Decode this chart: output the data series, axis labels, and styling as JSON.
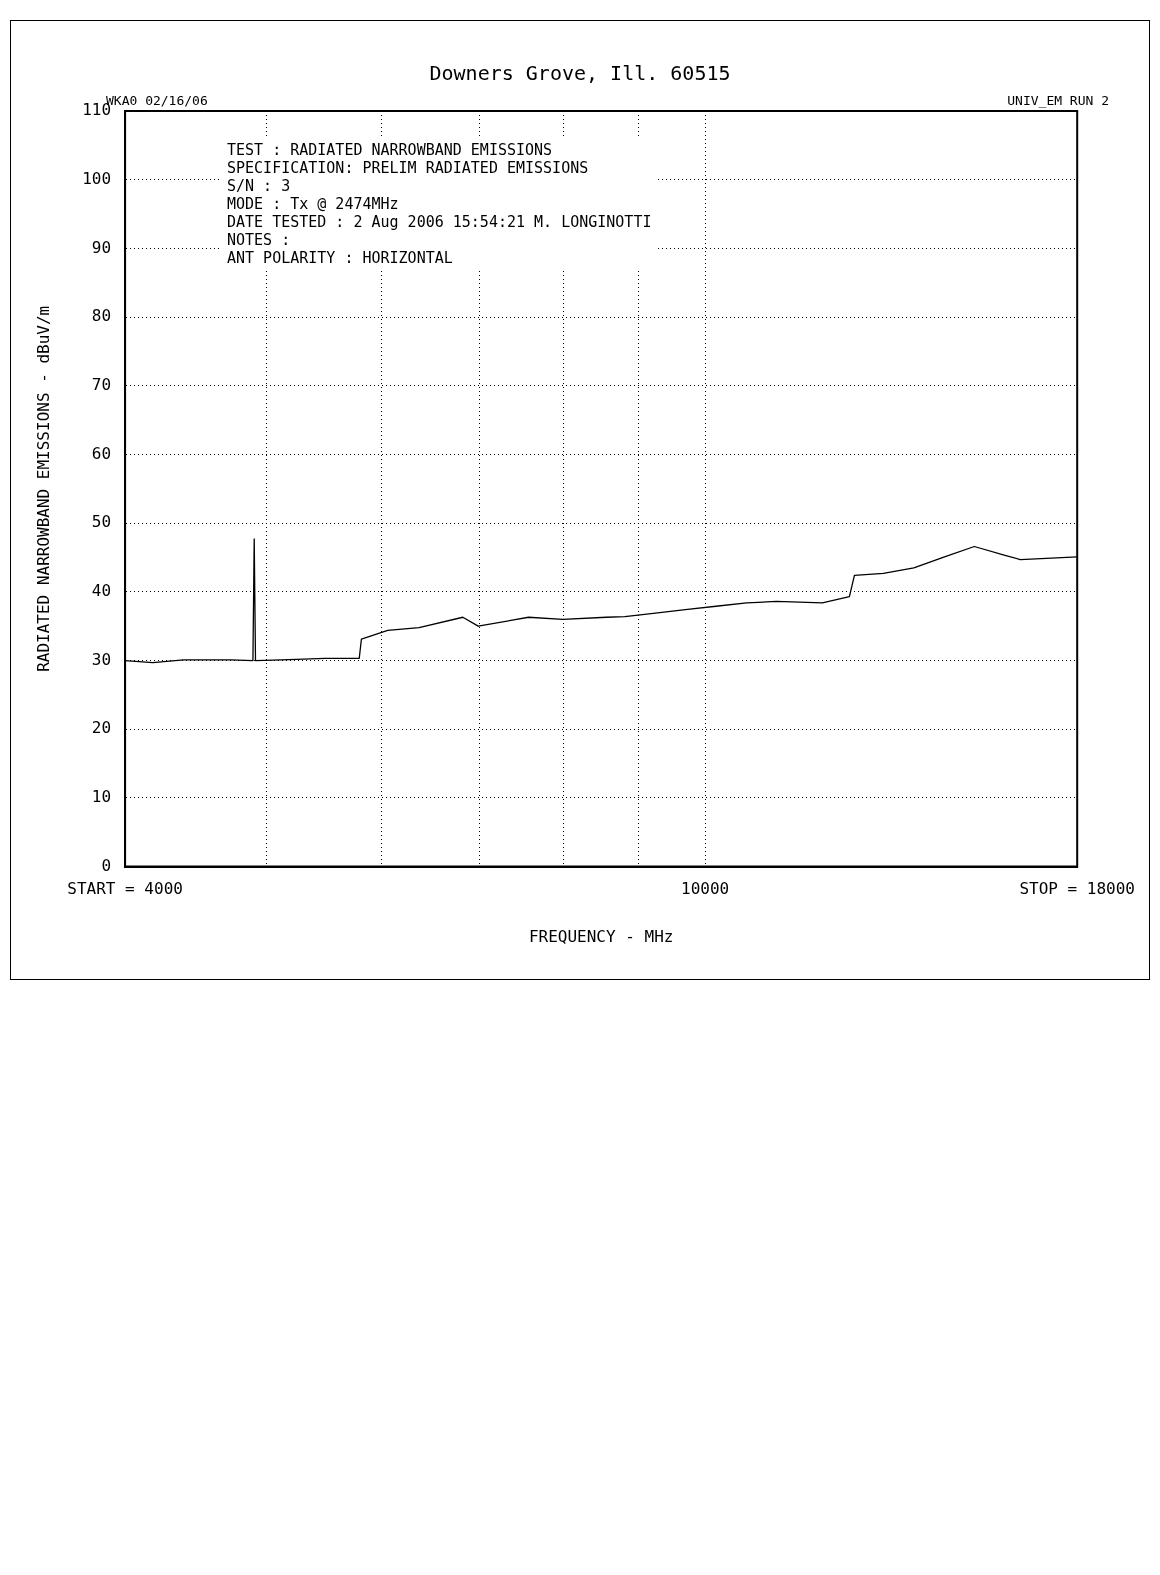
{
  "chart_data": {
    "type": "line",
    "subtitle": "Downers Grove, Ill. 60515",
    "xlabel": "FREQUENCY - MHz",
    "ylabel": "RADIATED NARROWBAND EMISSIONS - dBuV/m",
    "annotations": [
      "WKA0 02/16/06",
      "UNIV_EM RUN 2",
      "TEST : RADIATED NARROWBAND EMISSIONS",
      "SPECIFICATION: PRELIM RADIATED EMISSIONS",
      "S/N : 3",
      "MODE : Tx @ 2474MHz",
      "DATE TESTED : 2 Aug 2006 15:54:21 M. LONGINOTTI",
      "NOTES :",
      "ANT POLARITY : HORIZONTAL"
    ],
    "log": "x",
    "grid": true,
    "legend": false,
    "marker": "none",
    "line_style": "solid",
    "xlim": [
      4000,
      18000
    ],
    "xticks": [
      {
        "value": 4000,
        "label": "START = 4000"
      },
      {
        "value": 5000,
        "label": null
      },
      {
        "value": 6000,
        "label": null
      },
      {
        "value": 7000,
        "label": null
      },
      {
        "value": 8000,
        "label": null
      },
      {
        "value": 9000,
        "label": null
      },
      10000,
      {
        "value": 18000,
        "label": "STOP = 18000"
      }
    ],
    "ylim": [
      0,
      110
    ],
    "yticks": [
      0,
      10,
      20,
      30,
      40,
      50,
      60,
      70,
      80,
      90,
      100,
      110
    ],
    "series": [
      {
        "color": "#000000",
        "x": [
          4000,
          4179,
          4387,
          4727,
          4895,
          4905,
          4915,
          5120,
          5486,
          5790,
          5810,
          6057,
          6364,
          6820,
          6987,
          7566,
          7987,
          8557,
          8808,
          9245,
          9693,
          10173,
          10678,
          11194,
          12035,
          12560,
          12660,
          13253,
          13906,
          14596,
          15301,
          16060,
          16453,
          18000
        ],
        "values": [
          30.0,
          29.7,
          30.1,
          30.1,
          30.0,
          47.7,
          30.0,
          30.1,
          30.3,
          30.3,
          33.1,
          34.4,
          34.8,
          36.3,
          35.0,
          36.3,
          36.0,
          36.3,
          36.4,
          36.9,
          37.4,
          37.9,
          38.4,
          38.6,
          38.4,
          39.3,
          42.4,
          42.7,
          43.5,
          45.1,
          46.6,
          45.3,
          44.7,
          45.1
        ]
      }
    ]
  }
}
